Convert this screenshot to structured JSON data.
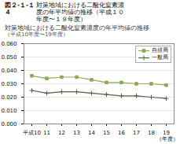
{
  "chart_data": {
    "type": "line",
    "annotations": [
      "図２-１-１４",
      "対策地域における二酸化窒素濃",
      "度の年平均値の推移（平成１０",
      "年度〜１９年度）"
    ],
    "title": "対策地域における二酸化窒素濃度の年平均値の推移",
    "subtitle": "（平成10年度〜19年度）",
    "x_label": "（年度）",
    "categories": [
      "平成10",
      "11",
      "12",
      "13",
      "14",
      "15",
      "16",
      "17",
      "18",
      "19"
    ],
    "series": [
      {
        "name": "自排局",
        "color": "#8aaa5a",
        "marker": "square",
        "values": [
          0.036,
          0.034,
          0.035,
          0.035,
          0.033,
          0.031,
          0.031,
          0.03,
          0.03,
          0.029
        ]
      },
      {
        "name": "一般局",
        "color": "#4a6741",
        "marker": "plus",
        "values": [
          0.025,
          0.023,
          0.024,
          0.024,
          0.023,
          0.022,
          0.021,
          0.021,
          0.02,
          0.019
        ]
      }
    ],
    "ylim": [
      0.0,
      0.06
    ],
    "yticks": [
      {
        "value": 0.0,
        "label": "0.000"
      },
      {
        "value": 0.01,
        "label": "0.010"
      },
      {
        "value": 0.02,
        "label": "0.020"
      },
      {
        "value": 0.03,
        "label": "0.030"
      },
      {
        "value": 0.04,
        "label": "0.040"
      },
      {
        "value": 0.05,
        "label": "0.050"
      },
      {
        "value": 0.06,
        "label": "0.060"
      }
    ],
    "grid": true,
    "legend": "upper right"
  }
}
